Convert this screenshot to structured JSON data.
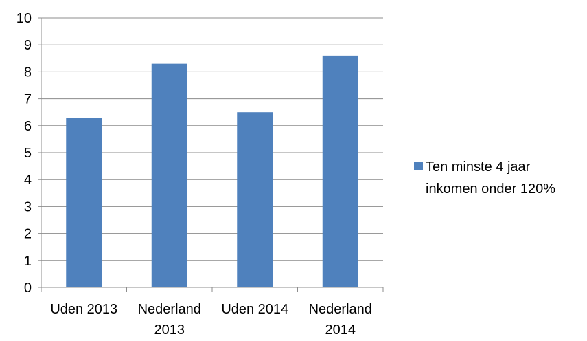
{
  "colors": {
    "bar": "#4F81BD",
    "grid": "#8C8C8C",
    "axis": "#8C8C8C",
    "text": "#000000"
  },
  "chart_data": {
    "type": "bar",
    "categories": [
      [
        "Uden 2013"
      ],
      [
        "Nederland",
        "2013"
      ],
      [
        "Uden 2014"
      ],
      [
        "Nederland",
        "2014"
      ]
    ],
    "series": [
      {
        "name": [
          "Ten minste 4 jaar",
          "inkomen onder 120%"
        ],
        "values": [
          6.3,
          8.3,
          6.5,
          8.6
        ]
      }
    ],
    "ylim": [
      0,
      10
    ],
    "yticks": [
      "0",
      "1",
      "2",
      "3",
      "4",
      "5",
      "6",
      "7",
      "8",
      "9",
      "10"
    ],
    "grid": true,
    "legend": "right"
  }
}
